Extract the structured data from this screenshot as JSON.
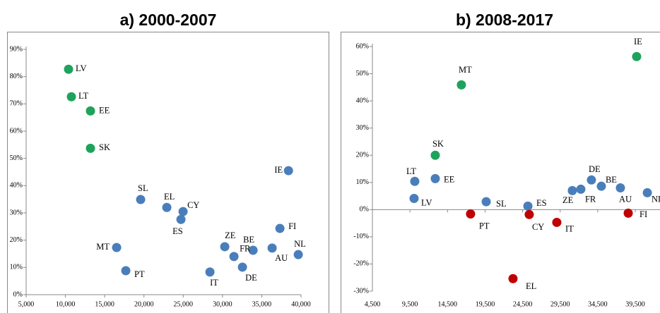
{
  "chart_data": [
    {
      "type": "scatter",
      "title": "a) 2000-2007",
      "labels": [
        "LV",
        "LT",
        "EE",
        "SK",
        "IE",
        "SL",
        "EL",
        "CY",
        "ES",
        "FI",
        "ZE",
        "BE",
        "NL",
        "MT",
        "FR",
        "AU",
        "DE",
        "PT",
        "IT"
      ],
      "x": [
        10400,
        10760,
        13190,
        13190,
        38400,
        19580,
        22910,
        24980,
        24710,
        37310,
        30290,
        33890,
        39650,
        16520,
        31460,
        36320,
        32540,
        17690,
        28400
      ],
      "y": [
        82.7,
        72.6,
        67.4,
        53.7,
        45.5,
        34.9,
        32.0,
        30.5,
        27.6,
        24.3,
        17.6,
        16.3,
        14.7,
        17.3,
        14.0,
        17.1,
        10.1,
        8.8,
        8.3
      ],
      "colors": [
        "#1ea35c",
        "#1ea35c",
        "#1ea35c",
        "#1ea35c",
        "#4a7ebb",
        "#4a7ebb",
        "#4a7ebb",
        "#4a7ebb",
        "#4a7ebb",
        "#4a7ebb",
        "#4a7ebb",
        "#4a7ebb",
        "#4a7ebb",
        "#4a7ebb",
        "#4a7ebb",
        "#4a7ebb",
        "#4a7ebb",
        "#4a7ebb",
        "#4a7ebb"
      ],
      "xlim": [
        5000,
        40000
      ],
      "xticks": [
        {
          "value": 5000,
          "label": "5,000"
        },
        {
          "value": 10000,
          "label": "10,000"
        },
        {
          "value": 15000,
          "label": "15,000"
        },
        {
          "value": 20000,
          "label": "20,000"
        },
        {
          "value": 25000,
          "label": "25,000"
        },
        {
          "value": 30000,
          "label": "30,000"
        },
        {
          "value": 35000,
          "label": "35,000"
        },
        {
          "value": 40000,
          "label": "40,000"
        }
      ],
      "ylim": [
        0,
        90
      ],
      "yticks": [
        {
          "value": 0,
          "label": "0%"
        },
        {
          "value": 10,
          "label": "10%"
        },
        {
          "value": 20,
          "label": "20%"
        },
        {
          "value": 30,
          "label": "30%"
        },
        {
          "value": 40,
          "label": "40%"
        },
        {
          "value": 50,
          "label": "50%"
        },
        {
          "value": 60,
          "label": "60%"
        },
        {
          "value": 70,
          "label": "70%"
        },
        {
          "value": 80,
          "label": "80%"
        },
        {
          "value": 90,
          "label": "90%"
        }
      ]
    },
    {
      "type": "scatter",
      "title": "b) 2008-2017",
      "labels": [
        "IE",
        "MT",
        "SK",
        "LT",
        "EE",
        "LV",
        "SL",
        "ES",
        "PT",
        "CY",
        "IT",
        "EL",
        "ZE",
        "FR",
        "DE",
        "BE",
        "AU",
        "FI",
        "NL"
      ],
      "x": [
        39680,
        16350,
        12870,
        10140,
        12870,
        10050,
        19650,
        25200,
        17570,
        25380,
        29050,
        23220,
        31120,
        32250,
        33660,
        34980,
        37520,
        38560,
        41100
      ],
      "y": [
        56.3,
        45.9,
        20.0,
        10.4,
        11.4,
        4.1,
        2.9,
        1.3,
        -1.6,
        -1.8,
        -4.7,
        -25.4,
        7.0,
        7.5,
        10.9,
        8.6,
        8.0,
        -1.3,
        6.2
      ],
      "colors": [
        "#1ea35c",
        "#1ea35c",
        "#1ea35c",
        "#4a7ebb",
        "#4a7ebb",
        "#4a7ebb",
        "#4a7ebb",
        "#4a7ebb",
        "#c00000",
        "#c00000",
        "#c00000",
        "#c00000",
        "#4a7ebb",
        "#4a7ebb",
        "#4a7ebb",
        "#4a7ebb",
        "#4a7ebb",
        "#c00000",
        "#4a7ebb"
      ],
      "xlim": [
        4500,
        42790
      ],
      "xticks": [
        {
          "value": 4500,
          "label": "4,500"
        },
        {
          "value": 9500,
          "label": "9,500"
        },
        {
          "value": 14500,
          "label": "14,500"
        },
        {
          "value": 19500,
          "label": "19,500"
        },
        {
          "value": 24500,
          "label": "24,500"
        },
        {
          "value": 29500,
          "label": "29,500"
        },
        {
          "value": 34500,
          "label": "34,500"
        },
        {
          "value": 39500,
          "label": "39,500"
        }
      ],
      "ylim": [
        -30,
        60
      ],
      "yticks": [
        {
          "value": -30,
          "label": "-30%"
        },
        {
          "value": -20,
          "label": "-20%"
        },
        {
          "value": -10,
          "label": "-10%"
        },
        {
          "value": 0,
          "label": "0%"
        },
        {
          "value": 10,
          "label": "10%"
        },
        {
          "value": 20,
          "label": "20%"
        },
        {
          "value": 30,
          "label": "30%"
        },
        {
          "value": 40,
          "label": "40%"
        },
        {
          "value": 50,
          "label": "50%"
        },
        {
          "value": 60,
          "label": "60%"
        }
      ]
    }
  ]
}
